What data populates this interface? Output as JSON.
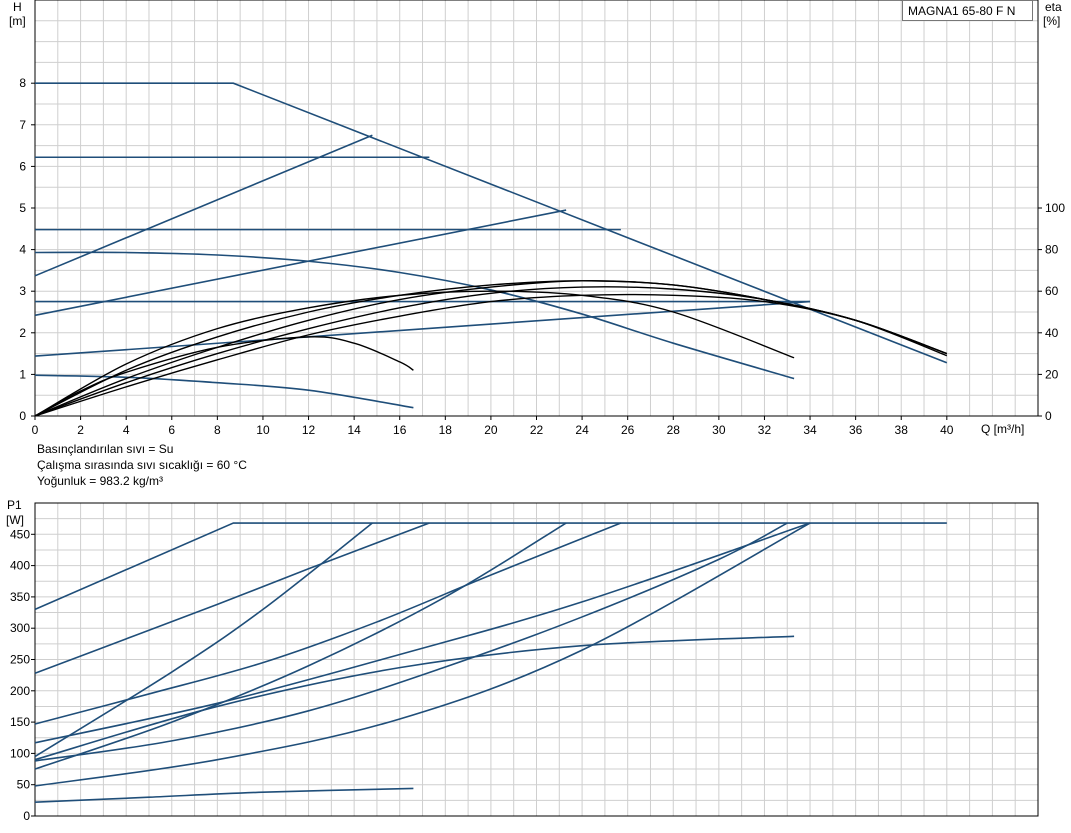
{
  "model": "MAGNA1 65-80 F N",
  "conditions": [
    "Basınçlandırılan sıvı = Su",
    "Çalışma sırasında sıvı sıcaklığı = 60 °C",
    "Yoğunluk = 983.2 kg/m³"
  ],
  "chart_data": [
    {
      "type": "line",
      "x_label": "Q [m³/h]",
      "y_label_left": [
        "H",
        "[m]"
      ],
      "y_label_right": [
        "eta",
        "[%]"
      ],
      "xlim": [
        0,
        44
      ],
      "ylim": [
        0,
        10
      ],
      "eta_lim": [
        0,
        100
      ],
      "x_ticks": [
        0,
        2,
        4,
        6,
        8,
        10,
        12,
        14,
        16,
        18,
        20,
        22,
        24,
        26,
        28,
        30,
        32,
        34,
        36,
        38,
        40
      ],
      "y_ticks": [
        0,
        1,
        2,
        3,
        4,
        5,
        6,
        7,
        8
      ],
      "eta_ticks": [
        0,
        20,
        40,
        60,
        80,
        100
      ],
      "grid": true,
      "head_curves": [
        {
          "x": [
            0,
            8.7,
            40
          ],
          "y": [
            8.0,
            8.0,
            1.28
          ]
        },
        {
          "x": [
            0,
            17.3
          ],
          "y": [
            6.22,
            6.22
          ]
        },
        {
          "x": [
            0,
            25.7
          ],
          "y": [
            4.48,
            4.48
          ]
        },
        {
          "x": [
            0,
            34
          ],
          "y": [
            2.75,
            2.75
          ]
        },
        {
          "x": [
            0,
            14.8
          ],
          "y": [
            3.37,
            6.75
          ]
        },
        {
          "x": [
            0,
            23.3
          ],
          "y": [
            2.42,
            4.95
          ]
        },
        {
          "x": [
            0,
            34
          ],
          "y": [
            1.44,
            2.75
          ]
        },
        {
          "x": [
            0,
            4,
            8,
            12,
            16,
            20,
            24,
            28,
            33.3
          ],
          "y": [
            3.93,
            3.93,
            3.87,
            3.72,
            3.45,
            3.03,
            2.45,
            1.75,
            0.9
          ]
        },
        {
          "x": [
            0,
            4,
            8,
            12,
            16.6
          ],
          "y": [
            0.98,
            0.93,
            0.8,
            0.62,
            0.2
          ]
        }
      ],
      "efficiency_curves": [
        {
          "x": [
            0,
            2,
            4,
            8,
            12,
            14,
            16,
            16.6
          ],
          "eta": [
            0,
            12,
            21,
            33,
            38,
            35,
            26,
            22
          ]
        },
        {
          "x": [
            0,
            4,
            8,
            12,
            16,
            20,
            24,
            28,
            33.3
          ],
          "eta": [
            0,
            25,
            42,
            52,
            58,
            60,
            58,
            50,
            28
          ]
        },
        {
          "x": [
            0,
            4,
            8,
            12,
            16,
            20,
            24,
            28,
            32,
            36,
            40
          ],
          "eta": [
            0,
            22,
            38,
            50,
            58,
            63,
            65,
            63,
            56,
            46,
            30
          ]
        },
        {
          "x": [
            0,
            4,
            8,
            12,
            16,
            20,
            24,
            28,
            32,
            36,
            40
          ],
          "eta": [
            0,
            18,
            33,
            46,
            56,
            62,
            65,
            63,
            56,
            46,
            29
          ]
        },
        {
          "x": [
            0,
            4,
            8,
            12,
            16,
            20,
            24,
            28,
            32,
            36,
            40
          ],
          "eta": [
            0,
            16,
            30,
            42,
            52,
            59,
            62,
            61,
            56,
            46,
            30
          ]
        },
        {
          "x": [
            0,
            4,
            8,
            12,
            16,
            20,
            24,
            28,
            32,
            36,
            40
          ],
          "eta": [
            0,
            14,
            27,
            39,
            48,
            55,
            58,
            58,
            55,
            46,
            30
          ]
        }
      ]
    },
    {
      "type": "line",
      "y_label_left": [
        "P1",
        "[W]"
      ],
      "xlim": [
        0,
        44
      ],
      "ylim": [
        0,
        500
      ],
      "y_ticks": [
        0,
        50,
        100,
        150,
        200,
        250,
        300,
        350,
        400,
        450
      ],
      "grid": true,
      "power_curves": [
        {
          "x": [
            0,
            8.7,
            40
          ],
          "y": [
            330,
            468,
            468
          ]
        },
        {
          "x": [
            0,
            4,
            8,
            12,
            17.3
          ],
          "y": [
            228,
            283,
            338,
            395,
            468
          ]
        },
        {
          "x": [
            0,
            6,
            10,
            14.8
          ],
          "y": [
            95,
            230,
            330,
            468
          ]
        },
        {
          "x": [
            0,
            5,
            10,
            15,
            20,
            25.7
          ],
          "y": [
            147,
            195,
            245,
            310,
            385,
            468
          ]
        },
        {
          "x": [
            0,
            6,
            12,
            18,
            23.3
          ],
          "y": [
            75,
            150,
            240,
            350,
            468
          ]
        },
        {
          "x": [
            0,
            8,
            16,
            24,
            34
          ],
          "y": [
            117,
            180,
            258,
            342,
            468
          ]
        },
        {
          "x": [
            0,
            6,
            12,
            18,
            24,
            30,
            33
          ],
          "y": [
            88,
            120,
            168,
            238,
            318,
            410,
            468
          ]
        },
        {
          "x": [
            0,
            8,
            16,
            24,
            33.3
          ],
          "y": [
            90,
            175,
            237,
            272,
            287
          ]
        },
        {
          "x": [
            0,
            8,
            16,
            24,
            34
          ],
          "y": [
            48,
            90,
            155,
            265,
            468
          ]
        },
        {
          "x": [
            0,
            5,
            10,
            16.6
          ],
          "y": [
            22,
            30,
            38,
            44
          ]
        }
      ]
    }
  ]
}
